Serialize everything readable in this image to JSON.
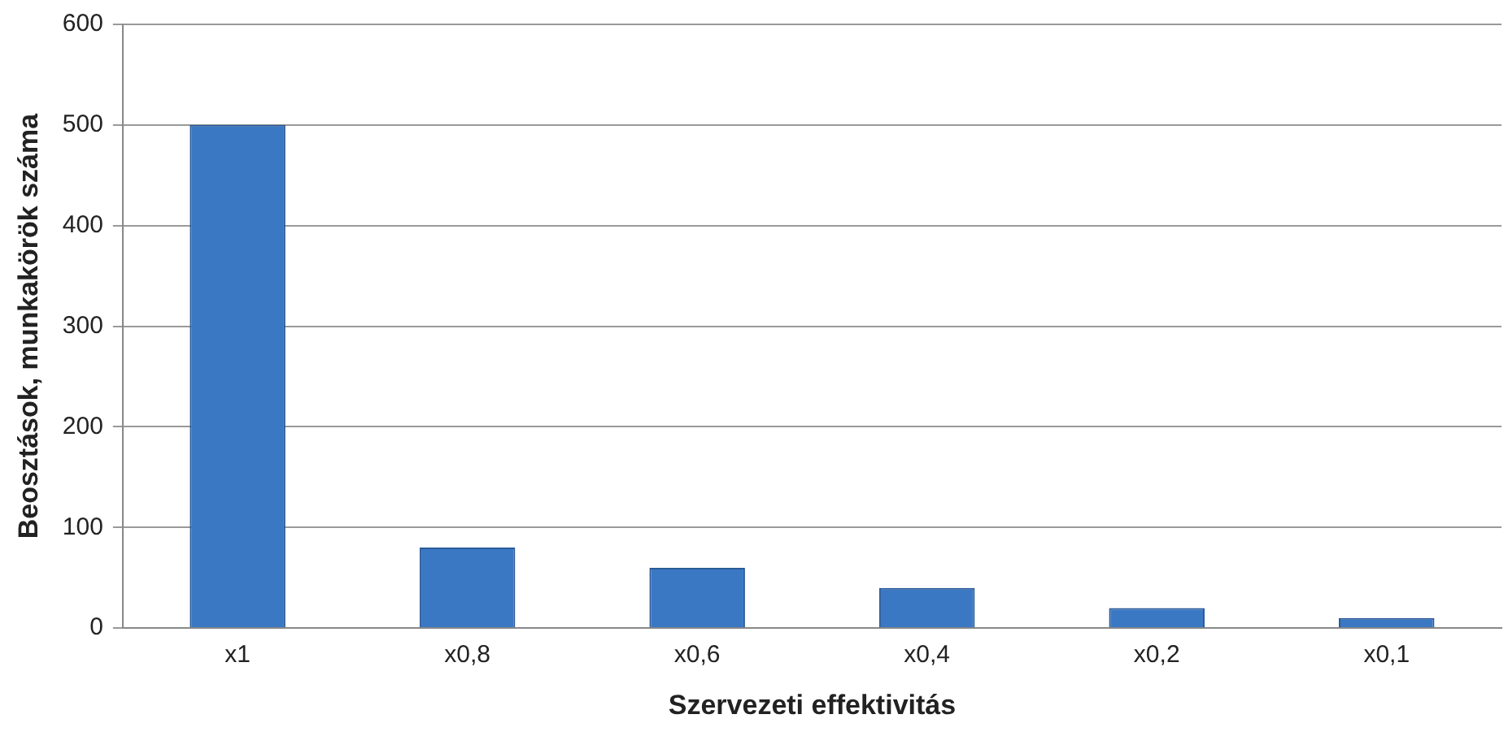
{
  "chart_data": {
    "type": "bar",
    "xlabel": "Szervezeti effektivitás",
    "ylabel": "Beosztások, munkakörök száma",
    "categories": [
      "x1",
      "x0,8",
      "x0,6",
      "x0,4",
      "x0,2",
      "x0,1"
    ],
    "values": [
      500,
      80,
      60,
      40,
      20,
      10
    ],
    "color": "#3b78c4",
    "ylim": [
      0,
      600
    ],
    "yticks": [
      0,
      100,
      200,
      300,
      400,
      500,
      600
    ],
    "grid": "y",
    "legend": false
  }
}
